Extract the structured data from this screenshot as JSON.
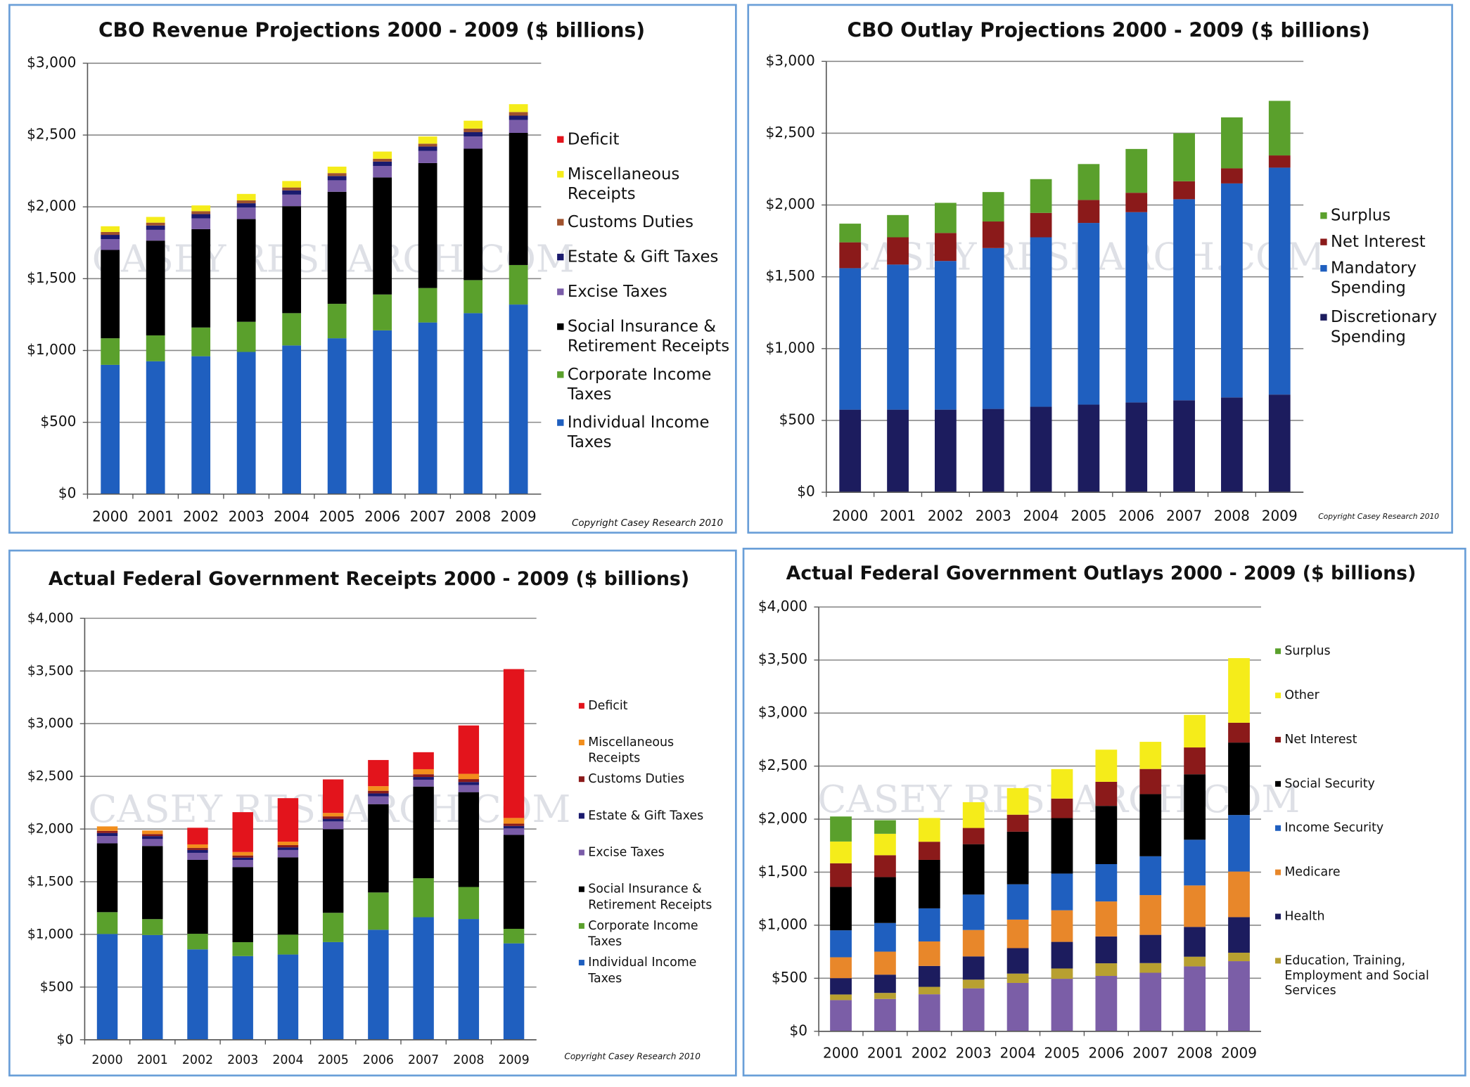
{
  "chart_data": [
    {
      "type": "stacked-bar",
      "title": "CBO Revenue Projections  2000 - 2009 ($ billions)",
      "copyright": "Copyright Casey Research 2010",
      "watermark": "CASEY RESEARCH.COM",
      "categories": [
        "2000",
        "2001",
        "2002",
        "2003",
        "2004",
        "2005",
        "2006",
        "2007",
        "2008",
        "2009"
      ],
      "ylim": [
        0,
        3000
      ],
      "yticks": [
        {
          "value": 0,
          "label": "$0"
        },
        {
          "value": 500,
          "label": "$500"
        },
        {
          "value": 1000,
          "label": "$1,000"
        },
        {
          "value": 1500,
          "label": "$1,500"
        },
        {
          "value": 2000,
          "label": "$2,000"
        },
        {
          "value": 2500,
          "label": "$2,500"
        },
        {
          "value": 3000,
          "label": "$3,000"
        }
      ],
      "grid": true,
      "series": [
        {
          "name": "Individual Income Taxes",
          "color": "#1f5fbf",
          "values": [
            900,
            925,
            960,
            990,
            1035,
            1085,
            1140,
            1195,
            1260,
            1320
          ]
        },
        {
          "name": "Corporate Income Taxes",
          "color": "#5aa02c",
          "values": [
            185,
            180,
            200,
            210,
            225,
            240,
            250,
            240,
            230,
            275
          ]
        },
        {
          "name": "Social Insurance & Retirement Receipts",
          "color": "#000000",
          "values": [
            615,
            660,
            685,
            715,
            745,
            780,
            815,
            870,
            915,
            920
          ]
        },
        {
          "name": "Excise Taxes",
          "color": "#7a5ca8",
          "values": [
            75,
            75,
            75,
            80,
            80,
            80,
            80,
            85,
            85,
            90
          ]
        },
        {
          "name": "Estate & Gift Taxes",
          "color": "#1a1a6e",
          "values": [
            30,
            30,
            30,
            30,
            30,
            30,
            30,
            30,
            30,
            30
          ]
        },
        {
          "name": "Customs Duties",
          "color": "#a0522d",
          "values": [
            20,
            20,
            20,
            20,
            20,
            20,
            20,
            20,
            25,
            25
          ]
        },
        {
          "name": "Miscellaneous Receipts",
          "color": "#f5ec1a",
          "values": [
            40,
            40,
            40,
            45,
            45,
            45,
            50,
            50,
            55,
            55
          ]
        },
        {
          "name": "Deficit",
          "color": "#e3141c",
          "values": [
            0,
            0,
            0,
            0,
            0,
            0,
            0,
            0,
            0,
            0
          ]
        }
      ]
    },
    {
      "type": "stacked-bar",
      "title": "CBO Outlay Projections 2000 - 2009 ($ billions)",
      "copyright": "Copyright Casey Research 2010",
      "watermark": "CASEY RESEARCH.COM",
      "categories": [
        "2000",
        "2001",
        "2002",
        "2003",
        "2004",
        "2005",
        "2006",
        "2007",
        "2008",
        "2009"
      ],
      "ylim": [
        0,
        3000
      ],
      "yticks": [
        {
          "value": 0,
          "label": "$0"
        },
        {
          "value": 500,
          "label": "$500"
        },
        {
          "value": 1000,
          "label": "$1,000"
        },
        {
          "value": 1500,
          "label": "$1,500"
        },
        {
          "value": 2000,
          "label": "$2,000"
        },
        {
          "value": 2500,
          "label": "$2,500"
        },
        {
          "value": 3000,
          "label": "$3,000"
        }
      ],
      "grid": true,
      "series": [
        {
          "name": "Discretionary Spending",
          "color": "#1c1c5e",
          "values": [
            575,
            575,
            575,
            580,
            595,
            610,
            625,
            640,
            660,
            680
          ]
        },
        {
          "name": "Mandatory Spending",
          "color": "#1f5fbf",
          "values": [
            985,
            1010,
            1035,
            1120,
            1180,
            1265,
            1325,
            1400,
            1490,
            1580
          ]
        },
        {
          "name": "Net Interest",
          "color": "#8b1a1a",
          "values": [
            180,
            190,
            195,
            185,
            170,
            160,
            135,
            125,
            105,
            85
          ]
        },
        {
          "name": "Surplus",
          "color": "#5aa02c",
          "values": [
            130,
            155,
            210,
            205,
            235,
            250,
            305,
            335,
            355,
            380
          ]
        }
      ]
    },
    {
      "type": "stacked-bar",
      "title": "Actual Federal Government Receipts 2000 - 2009 ($ billions)",
      "copyright": "Copyright Casey Research 2010",
      "watermark": "CASEY RESEARCH.COM",
      "categories": [
        "2000",
        "2001",
        "2002",
        "2003",
        "2004",
        "2005",
        "2006",
        "2007",
        "2008",
        "2009"
      ],
      "ylim": [
        0,
        4000
      ],
      "yticks": [
        {
          "value": 0,
          "label": "$0"
        },
        {
          "value": 500,
          "label": "$500"
        },
        {
          "value": 1000,
          "label": "$1,000"
        },
        {
          "value": 1500,
          "label": "$1,500"
        },
        {
          "value": 2000,
          "label": "$2,000"
        },
        {
          "value": 2500,
          "label": "$2,500"
        },
        {
          "value": 3000,
          "label": "$3,000"
        },
        {
          "value": 3500,
          "label": "$3,500"
        },
        {
          "value": 4000,
          "label": "$4,000"
        }
      ],
      "grid": true,
      "series": [
        {
          "name": "Individual Income Taxes",
          "color": "#1f5fbf",
          "values": [
            1004,
            994,
            858,
            794,
            809,
            927,
            1044,
            1163,
            1146,
            915
          ]
        },
        {
          "name": "Corporate Income Taxes",
          "color": "#5aa02c",
          "values": [
            207,
            151,
            148,
            132,
            189,
            278,
            354,
            370,
            304,
            138
          ]
        },
        {
          "name": "Social Insurance & Retirement Receipts",
          "color": "#000000",
          "values": [
            653,
            694,
            701,
            713,
            733,
            794,
            838,
            870,
            900,
            891
          ]
        },
        {
          "name": "Excise Taxes",
          "color": "#7a5ca8",
          "values": [
            69,
            66,
            67,
            68,
            70,
            73,
            74,
            65,
            67,
            62
          ]
        },
        {
          "name": "Estate & Gift Taxes",
          "color": "#1a1a6e",
          "values": [
            29,
            28,
            27,
            22,
            25,
            25,
            28,
            26,
            29,
            23
          ]
        },
        {
          "name": "Customs Duties",
          "color": "#8b1a1a",
          "values": [
            20,
            19,
            19,
            20,
            21,
            23,
            25,
            26,
            28,
            22
          ]
        },
        {
          "name": "Miscellaneous Receipts",
          "color": "#f28e1c",
          "values": [
            43,
            34,
            34,
            33,
            33,
            33,
            44,
            48,
            50,
            54
          ]
        },
        {
          "name": "Deficit",
          "color": "#e3141c",
          "values": [
            0,
            0,
            158,
            378,
            413,
            318,
            248,
            161,
            459,
            1413
          ]
        }
      ]
    },
    {
      "type": "stacked-bar",
      "title": "Actual Federal Government Outlays 2000 - 2009 ($ billions)",
      "watermark": "CASEY RESEARCH.COM",
      "categories": [
        "2000",
        "2001",
        "2002",
        "2003",
        "2004",
        "2005",
        "2006",
        "2007",
        "2008",
        "2009"
      ],
      "ylim": [
        0,
        4000
      ],
      "yticks": [
        {
          "value": 0,
          "label": "$0"
        },
        {
          "value": 500,
          "label": "$500"
        },
        {
          "value": 1000,
          "label": "$1,000"
        },
        {
          "value": 1500,
          "label": "$1,500"
        },
        {
          "value": 2000,
          "label": "$2,000"
        },
        {
          "value": 2500,
          "label": "$2,500"
        },
        {
          "value": 3000,
          "label": "$3,000"
        },
        {
          "value": 3500,
          "label": "$3,500"
        },
        {
          "value": 4000,
          "label": "$4,000"
        }
      ],
      "grid": true,
      "series": [
        {
          "color": "#7b5ea7",
          "values": [
            294,
            305,
            349,
            405,
            456,
            495,
            522,
            552,
            612,
            661
          ]
        },
        {
          "name": "Education, Training, Employment and Social Services",
          "color": "#b8a030",
          "values": [
            53,
            57,
            70,
            82,
            88,
            97,
            119,
            91,
            91,
            80
          ]
        },
        {
          "name": "Health",
          "color": "#1c1c5e",
          "values": [
            154,
            172,
            197,
            219,
            240,
            251,
            253,
            266,
            281,
            335
          ]
        },
        {
          "name": "Medicare",
          "color": "#e8872a",
          "values": [
            197,
            217,
            231,
            249,
            269,
            298,
            330,
            375,
            391,
            430
          ]
        },
        {
          "name": "Income Security",
          "color": "#1f5fbf",
          "values": [
            254,
            270,
            312,
            334,
            333,
            346,
            352,
            366,
            431,
            533
          ]
        },
        {
          "name": "Social Security",
          "color": "#000000",
          "values": [
            409,
            433,
            457,
            475,
            496,
            523,
            549,
            586,
            617,
            683
          ]
        },
        {
          "name": "Net Interest",
          "color": "#8b1a1a",
          "values": [
            223,
            206,
            171,
            153,
            160,
            184,
            227,
            237,
            253,
            187
          ]
        },
        {
          "name": "Other",
          "color": "#f5ec1a",
          "values": [
            205,
            202,
            224,
            243,
            251,
            278,
            303,
            256,
            307,
            609
          ]
        },
        {
          "name": "Surplus",
          "color": "#5aa02c",
          "values": [
            236,
            128,
            0,
            0,
            0,
            0,
            0,
            0,
            0,
            0
          ]
        }
      ]
    }
  ]
}
